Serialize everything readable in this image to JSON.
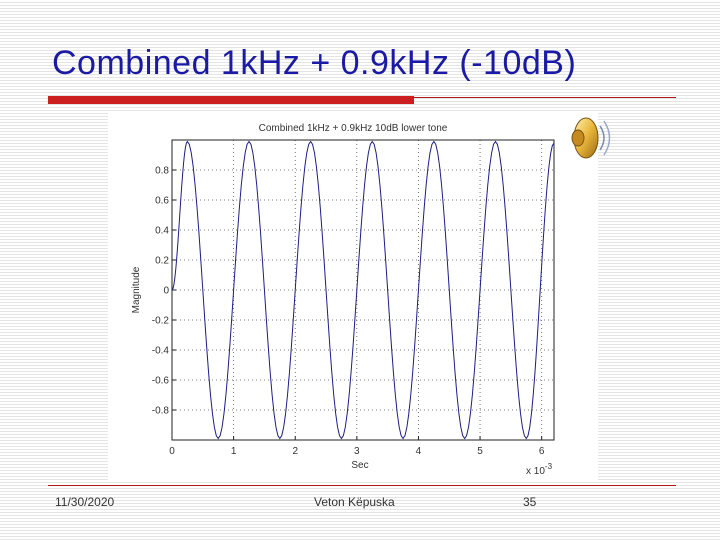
{
  "slide": {
    "title": "Combined 1kHz + 0.9kHz (-10dB)",
    "footer": {
      "date": "11/30/2020",
      "author": "Veton Këpuska",
      "page": "35"
    }
  },
  "icons": {
    "speaker": "speaker-icon"
  },
  "colors": {
    "title": "#1a1aa6",
    "accent_rule": "#cc1f1f",
    "plot_line": "#1c1c8c"
  },
  "chart_data": {
    "type": "line",
    "title": "Combined 1kHz + 0.9kHz 10dB lower tone",
    "xlabel": "Sec",
    "ylabel": "Magnitude",
    "x_multiplier": "x 10",
    "x_multiplier_exponent": "-3",
    "xlim": [
      0,
      6.2
    ],
    "ylim": [
      -1,
      1
    ],
    "xticks": [
      0,
      1,
      2,
      3,
      4,
      5,
      6
    ],
    "xtick_labels": [
      "0",
      "1",
      "2",
      "3",
      "4",
      "5",
      "6"
    ],
    "yticks": [
      0.8,
      0.6,
      0.4,
      0.2,
      0,
      -0.2,
      -0.4,
      -0.6,
      -0.8
    ],
    "ytick_labels": [
      "0.8",
      "0.6",
      "0.4",
      "0.2",
      "0",
      "-0.2",
      "-0.4",
      "-0.6",
      "-0.8"
    ],
    "grid": true,
    "grid_style": "dotted",
    "series": [
      {
        "x": [
          0,
          0.25,
          0.75,
          1.25,
          1.75,
          2.25,
          2.75,
          3.25,
          3.75,
          4.25,
          4.75,
          5.25,
          5.75,
          6.2
        ],
        "y": [
          0,
          0.99,
          -0.99,
          0.99,
          -0.99,
          0.99,
          -0.99,
          0.99,
          -0.99,
          0.99,
          -0.99,
          0.99,
          -0.99,
          0.98
        ]
      }
    ]
  }
}
